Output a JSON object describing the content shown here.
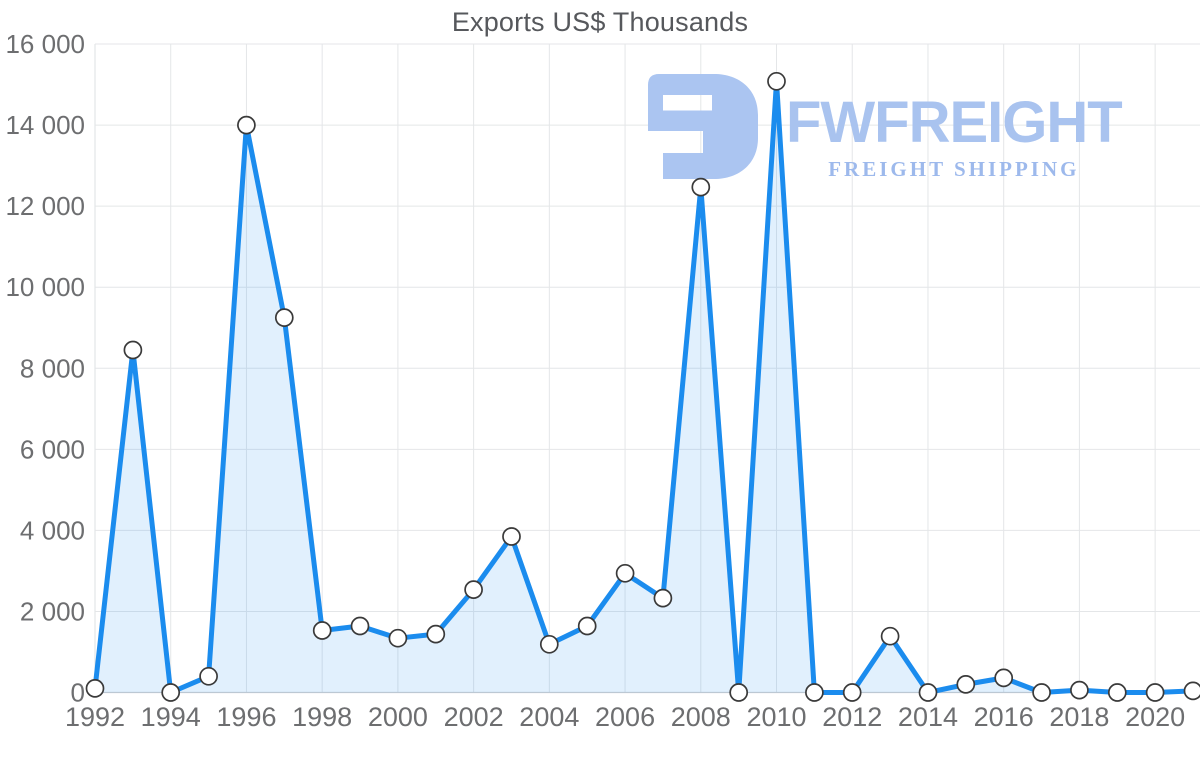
{
  "watermark": {
    "brand": "FWFREIGHT",
    "tagline": "FREIGHT SHIPPING",
    "icon": "fwfreight-logo-mark",
    "brand_color": "#a9c3ef",
    "tagline_color": "#9db9ec",
    "icon_color": "#abc5f1"
  },
  "chart_data": {
    "type": "area",
    "title": "Exports US$ Thousands",
    "x": [
      1992,
      1993,
      1994,
      1995,
      1996,
      1997,
      1998,
      1999,
      2000,
      2001,
      2002,
      2003,
      2004,
      2005,
      2006,
      2007,
      2008,
      2009,
      2010,
      2011,
      2012,
      2013,
      2014,
      2015,
      2016,
      2017,
      2018,
      2019,
      2020,
      2021
    ],
    "series": [
      {
        "name": "Exports US$ Thousands",
        "values": [
          100,
          8450,
          0,
          400,
          14000,
          9250,
          1530,
          1640,
          1340,
          1440,
          2540,
          3850,
          1190,
          1640,
          2940,
          2330,
          12470,
          0,
          15080,
          0,
          0,
          1390,
          0,
          200,
          360,
          0,
          60,
          0,
          0,
          40
        ]
      }
    ],
    "xlabel": "",
    "ylabel": "",
    "xlim": [
      1992,
      2021
    ],
    "ylim": [
      0,
      16000
    ],
    "yticks": [
      0,
      2000,
      4000,
      6000,
      8000,
      10000,
      12000,
      14000,
      16000
    ],
    "ytick_labels": [
      "0",
      "2 000",
      "4 000",
      "6 000",
      "8 000",
      "10 000",
      "12 000",
      "14 000",
      "16 000"
    ],
    "xticks": [
      1992,
      1994,
      1996,
      1998,
      2000,
      2002,
      2004,
      2006,
      2008,
      2010,
      2012,
      2014,
      2016,
      2018,
      2020
    ],
    "grid": true,
    "legend": false,
    "marker": "circle",
    "colors": {
      "line": "#1b8cee",
      "fill_opacity": 0.13,
      "marker_fill": "#ffffff",
      "marker_stroke": "#3a3a3a",
      "grid": "#e4e6e8",
      "axis": "#c7ccd1",
      "tick_text": "#6d6e70",
      "title_text": "#56585c"
    }
  }
}
